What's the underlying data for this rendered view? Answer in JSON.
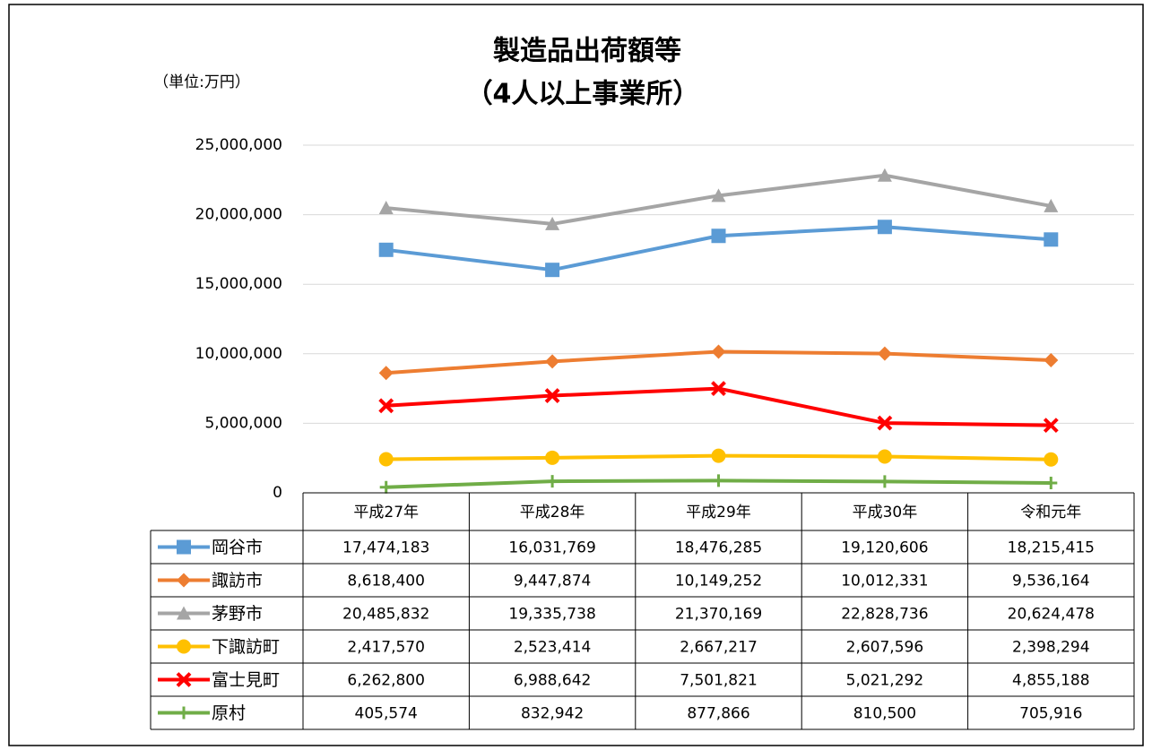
{
  "chart_data": {
    "type": "line",
    "title": "製造品出荷額等",
    "subtitle": "（4人以上事業所）",
    "unit_label": "（単位:万円）",
    "categories": [
      "平成27年",
      "平成28年",
      "平成29年",
      "平成30年",
      "令和元年"
    ],
    "ylim": [
      0,
      25000000
    ],
    "yticks": [
      0,
      {
        "value": 5000000,
        "label": "5,000,000"
      },
      {
        "value": 10000000,
        "label": "10,000,000"
      },
      {
        "value": 15000000,
        "label": "15,000,000"
      },
      {
        "value": 20000000,
        "label": "20,000,000"
      },
      {
        "value": 25000000,
        "label": "25,000,000"
      }
    ],
    "grid": true,
    "series": [
      {
        "name": "岡谷市",
        "color": "#5b9bd5",
        "marker": "square",
        "values": [
          17474183,
          16031769,
          18476285,
          19120606,
          18215415
        ],
        "value_labels": [
          "17,474,183",
          "16,031,769",
          "18,476,285",
          "19,120,606",
          "18,215,415"
        ]
      },
      {
        "name": "諏訪市",
        "color": "#ed7d31",
        "marker": "diamond",
        "values": [
          8618400,
          9447874,
          10149252,
          10012331,
          9536164
        ],
        "value_labels": [
          "8,618,400",
          "9,447,874",
          "10,149,252",
          "10,012,331",
          "9,536,164"
        ]
      },
      {
        "name": "茅野市",
        "color": "#a5a5a5",
        "marker": "triangle",
        "values": [
          20485832,
          19335738,
          21370169,
          22828736,
          20624478
        ],
        "value_labels": [
          "20,485,832",
          "19,335,738",
          "21,370,169",
          "22,828,736",
          "20,624,478"
        ]
      },
      {
        "name": "下諏訪町",
        "color": "#ffc000",
        "marker": "circle",
        "values": [
          2417570,
          2523414,
          2667217,
          2607596,
          2398294
        ],
        "value_labels": [
          "2,417,570",
          "2,523,414",
          "2,667,217",
          "2,607,596",
          "2,398,294"
        ]
      },
      {
        "name": "富士見町",
        "color": "#ff0000",
        "marker": "x",
        "values": [
          6262800,
          6988642,
          7501821,
          5021292,
          4855188
        ],
        "value_labels": [
          "6,262,800",
          "6,988,642",
          "7,501,821",
          "5,021,292",
          "4,855,188"
        ]
      },
      {
        "name": "原村",
        "color": "#70ad47",
        "marker": "plus",
        "values": [
          405574,
          832942,
          877866,
          810500,
          705916
        ],
        "value_labels": [
          "405,574",
          "832,942",
          "877,866",
          "810,500",
          "705,916"
        ]
      }
    ]
  }
}
